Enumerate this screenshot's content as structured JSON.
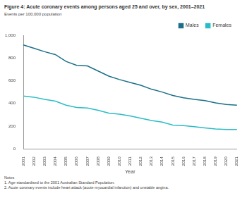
{
  "chart_data": {
    "type": "line",
    "title": "Figure 4: Acute coronary events among persons aged 25 and over, by sex, 2001–2021",
    "y_label": "Events per 100,000 population",
    "x_label": "Year",
    "categories": [
      "2001",
      "2002",
      "2003",
      "2004",
      "2005",
      "2006",
      "2007",
      "2008",
      "2009",
      "2010",
      "2011",
      "2012",
      "2013",
      "2014",
      "2015",
      "2016",
      "2017",
      "2018",
      "2019",
      "2020",
      "2021"
    ],
    "series": [
      {
        "name": "Males",
        "color": "#1b6f88",
        "values": [
          915,
          885,
          855,
          830,
          770,
          735,
          730,
          685,
          640,
          610,
          585,
          560,
          525,
          500,
          470,
          450,
          435,
          425,
          405,
          390,
          385
        ]
      },
      {
        "name": "Females",
        "color": "#2bbcc6",
        "values": [
          465,
          455,
          435,
          420,
          385,
          365,
          360,
          340,
          315,
          305,
          290,
          270,
          250,
          235,
          210,
          205,
          195,
          185,
          175,
          170,
          170
        ]
      }
    ],
    "ylim": [
      0,
      1000
    ],
    "yticks": [
      0,
      200,
      400,
      600,
      800,
      {
        "value": 1000,
        "label": "1,000"
      }
    ],
    "grid": false,
    "legend": "top-right",
    "marker": "none",
    "line_style": "solid"
  },
  "notes": {
    "title": "Notes",
    "items": [
      "1. Age-standardised to the 2001 Australian Standard Population.",
      "2. Acute coronary events include heart attack (acute myocardial infarction) and unstable angina."
    ]
  }
}
